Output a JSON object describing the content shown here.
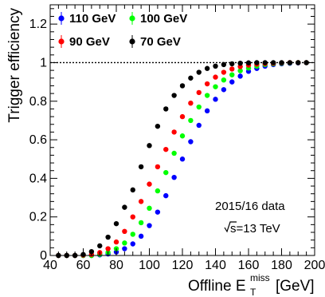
{
  "chart_data": {
    "type": "scatter",
    "xlabel": "Offline E",
    "xlabel_sub": "T",
    "xlabel_sup": "miss",
    "xlabel_unit": "[GeV]",
    "ylabel": "Trigger efficiency",
    "xlim": [
      40,
      200
    ],
    "ylim": [
      0,
      1.3
    ],
    "x_ticks": [
      40,
      60,
      80,
      100,
      120,
      140,
      160,
      180,
      200
    ],
    "x_tick_labels": [
      "40",
      "60",
      "80",
      "100",
      "120",
      "140",
      "160",
      "180",
      "200"
    ],
    "y_ticks": [
      0,
      0.2,
      0.4,
      0.6,
      0.8,
      1,
      1.2
    ],
    "y_tick_labels": [
      "0",
      "0.2",
      "0.4",
      "0.6",
      "0.8",
      "1",
      "1.2"
    ],
    "reference_line": 1,
    "legend_position": "top-left",
    "annotations": [
      "2015/16 data",
      "s=13 TeV"
    ],
    "x": [
      45,
      50,
      55,
      60,
      65,
      70,
      75,
      80,
      85,
      90,
      95,
      100,
      105,
      110,
      115,
      120,
      125,
      130,
      135,
      140,
      145,
      150,
      155,
      160,
      165,
      170,
      175,
      180,
      185,
      190,
      195
    ],
    "series": [
      {
        "name": "110 GeV",
        "color": "#0000ff",
        "values": [
          0,
          0,
          0,
          0,
          0,
          0.003,
          0.008,
          0.018,
          0.035,
          0.06,
          0.1,
          0.155,
          0.225,
          0.31,
          0.405,
          0.5,
          0.59,
          0.675,
          0.75,
          0.81,
          0.86,
          0.9,
          0.93,
          0.955,
          0.97,
          0.982,
          0.99,
          0.994,
          0.997,
          0.999,
          1.0
        ]
      },
      {
        "name": "100 GeV",
        "color": "#00ff00",
        "values": [
          0,
          0,
          0,
          0,
          0,
          0.006,
          0.016,
          0.035,
          0.065,
          0.11,
          0.17,
          0.245,
          0.335,
          0.43,
          0.53,
          0.62,
          0.7,
          0.77,
          0.83,
          0.875,
          0.91,
          0.937,
          0.958,
          0.972,
          0.982,
          0.99,
          0.994,
          0.997,
          0.999,
          1.0,
          1.0
        ]
      },
      {
        "name": "90 GeV",
        "color": "#ff0000",
        "values": [
          0,
          0,
          0,
          0.002,
          0.005,
          0.015,
          0.035,
          0.07,
          0.125,
          0.2,
          0.28,
          0.37,
          0.46,
          0.55,
          0.64,
          0.72,
          0.79,
          0.845,
          0.89,
          0.925,
          0.95,
          0.967,
          0.979,
          0.987,
          0.992,
          0.995,
          0.997,
          0.999,
          1.0,
          1.0,
          1.0
        ]
      },
      {
        "name": "70 GeV",
        "color": "#000000",
        "values": [
          0,
          0,
          0,
          0.005,
          0.02,
          0.05,
          0.095,
          0.165,
          0.25,
          0.34,
          0.46,
          0.57,
          0.67,
          0.76,
          0.83,
          0.88,
          0.92,
          0.95,
          0.97,
          0.982,
          0.99,
          0.994,
          0.997,
          0.999,
          1.0,
          1.0,
          1.0,
          1.0,
          1.0,
          1.0,
          1.0
        ]
      }
    ]
  }
}
